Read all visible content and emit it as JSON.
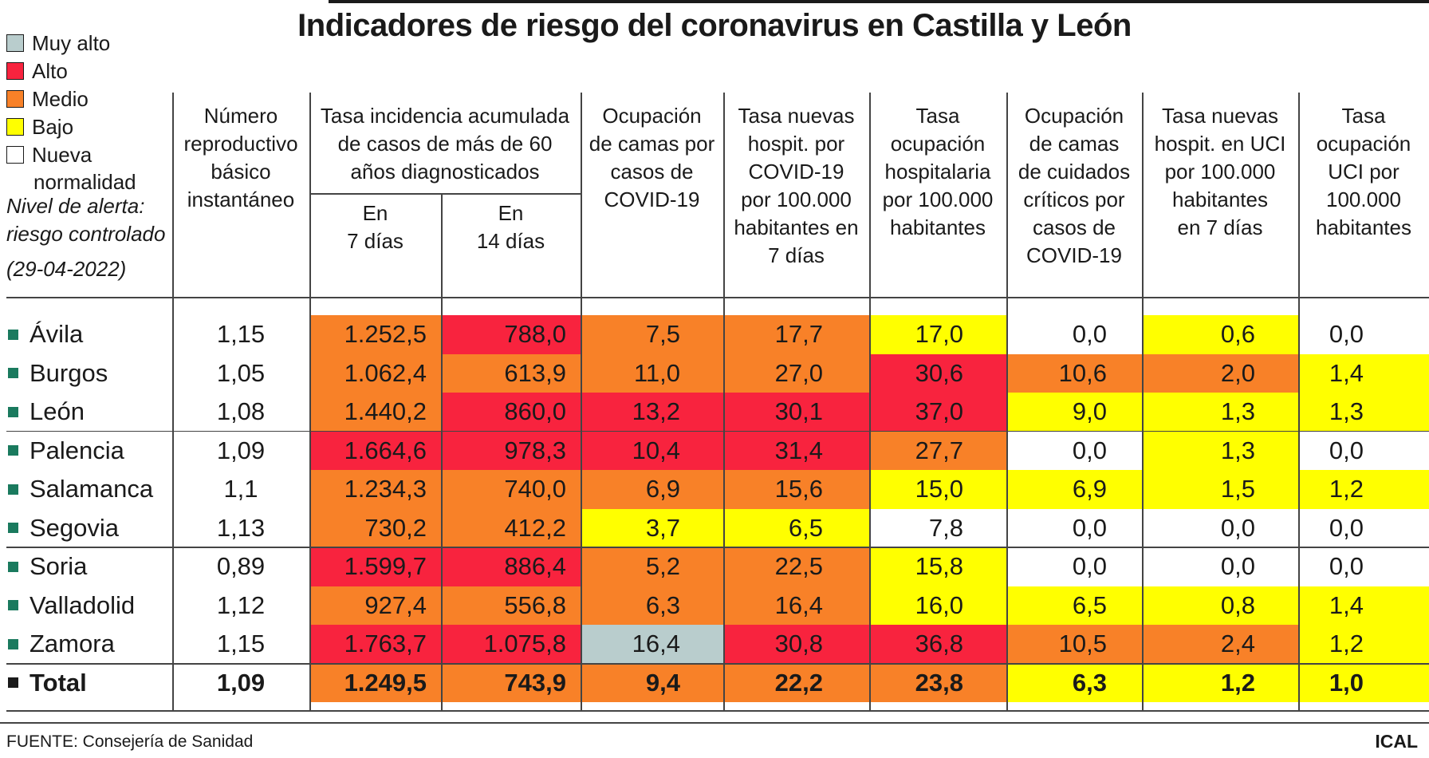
{
  "title": "Indicadores de riesgo del coronavirus en Castilla y León",
  "legend": {
    "items": [
      {
        "label": "Muy alto",
        "color": "#b9cdcd"
      },
      {
        "label": "Alto",
        "color": "#f8233e"
      },
      {
        "label": "Medio",
        "color": "#f88128"
      },
      {
        "label": "Bajo",
        "color": "#ffff00"
      },
      {
        "label": "Nueva",
        "color": "#ffffff"
      }
    ],
    "nueva_cont": "normalidad",
    "alert_line1": "Nivel de alerta:",
    "alert_line2": "riesgo controlado",
    "date": "(29-04-2022)"
  },
  "headers": {
    "rep": [
      "Número",
      "reproductivo",
      "básico",
      "instantáneo"
    ],
    "tasa_group": [
      "Tasa incidencia acumulada",
      "de casos de más de 60",
      "años diagnosticados"
    ],
    "tasa7": [
      "En",
      "7 días"
    ],
    "tasa14": [
      "En",
      "14 días"
    ],
    "ocup_camas": [
      "Ocupación",
      "de camas por",
      "casos de",
      "COVID-19"
    ],
    "hosp_nuevas": [
      "Tasa nuevas",
      "hospit. por",
      "COVID-19",
      "por 100.000",
      "habitantes en",
      "7 días"
    ],
    "tasa_hosp": [
      "Tasa",
      "ocupación",
      "hospitalaria",
      "por 100.000",
      "habitantes"
    ],
    "ocup_uci": [
      "Ocupación",
      "de camas",
      "de cuidados",
      "críticos por",
      "casos de",
      "COVID-19"
    ],
    "uci_nuevas": [
      "Tasa nuevas",
      "hospit. en UCI",
      "por 100.000",
      "habitantes",
      "en 7 días"
    ],
    "tasa_uci": [
      "Tasa",
      "ocupación",
      "UCI por",
      "100.000",
      "habitantes"
    ]
  },
  "colors": {
    "muy_alto": "#b9cdcd",
    "alto": "#f8233e",
    "medio": "#f88128",
    "bajo": "#ffff00",
    "nueva": "#ffffff"
  },
  "chart_data": {
    "type": "table",
    "title": "Indicadores de riesgo del coronavirus en Castilla y León",
    "date": "(29-04-2022)",
    "columns": [
      "Número reproductivo básico instantáneo",
      "Tasa incidencia acumulada de casos de más de 60 años diagnosticados - En 7 días",
      "Tasa incidencia acumulada de casos de más de 60 años diagnosticados - En 14 días",
      "Ocupación de camas por casos de COVID-19",
      "Tasa nuevas hospit. por COVID-19 por 100.000 habitantes en 7 días",
      "Tasa ocupación hospitalaria por 100.000 habitantes",
      "Ocupación de camas de cuidados críticos por casos de COVID-19",
      "Tasa nuevas hospit. en UCI por 100.000 habitantes en 7 días",
      "Tasa ocupación UCI por 100.000 habitantes"
    ],
    "rows": [
      {
        "name": "Ávila",
        "values": [
          "1,15",
          "1.252,5",
          "788,0",
          "7,5",
          "17,7",
          "17,0",
          "0,0",
          "0,6",
          "0,0"
        ],
        "levels": [
          "none",
          "medio",
          "alto",
          "medio",
          "medio",
          "bajo",
          "nueva",
          "bajo",
          "nueva"
        ]
      },
      {
        "name": "Burgos",
        "values": [
          "1,05",
          "1.062,4",
          "613,9",
          "11,0",
          "27,0",
          "30,6",
          "10,6",
          "2,0",
          "1,4"
        ],
        "levels": [
          "none",
          "medio",
          "medio",
          "medio",
          "medio",
          "alto",
          "medio",
          "medio",
          "bajo"
        ]
      },
      {
        "name": "León",
        "values": [
          "1,08",
          "1.440,2",
          "860,0",
          "13,2",
          "30,1",
          "37,0",
          "9,0",
          "1,3",
          "1,3"
        ],
        "levels": [
          "none",
          "medio",
          "alto",
          "alto",
          "alto",
          "alto",
          "bajo",
          "bajo",
          "bajo"
        ]
      },
      {
        "name": "Palencia",
        "values": [
          "1,09",
          "1.664,6",
          "978,3",
          "10,4",
          "31,4",
          "27,7",
          "0,0",
          "1,3",
          "0,0"
        ],
        "levels": [
          "none",
          "alto",
          "alto",
          "alto",
          "alto",
          "medio",
          "nueva",
          "bajo",
          "nueva"
        ]
      },
      {
        "name": "Salamanca",
        "values": [
          "1,1",
          "1.234,3",
          "740,0",
          "6,9",
          "15,6",
          "15,0",
          "6,9",
          "1,5",
          "1,2"
        ],
        "levels": [
          "none",
          "medio",
          "medio",
          "medio",
          "medio",
          "bajo",
          "bajo",
          "bajo",
          "bajo"
        ]
      },
      {
        "name": "Segovia",
        "values": [
          "1,13",
          "730,2",
          "412,2",
          "3,7",
          "6,5",
          "7,8",
          "0,0",
          "0,0",
          "0,0"
        ],
        "levels": [
          "none",
          "medio",
          "medio",
          "bajo",
          "bajo",
          "nueva",
          "nueva",
          "nueva",
          "nueva"
        ]
      },
      {
        "name": "Soria",
        "values": [
          "0,89",
          "1.599,7",
          "886,4",
          "5,2",
          "22,5",
          "15,8",
          "0,0",
          "0,0",
          "0,0"
        ],
        "levels": [
          "none",
          "alto",
          "alto",
          "medio",
          "medio",
          "bajo",
          "nueva",
          "nueva",
          "nueva"
        ]
      },
      {
        "name": "Valladolid",
        "values": [
          "1,12",
          "927,4",
          "556,8",
          "6,3",
          "16,4",
          "16,0",
          "6,5",
          "0,8",
          "1,4"
        ],
        "levels": [
          "none",
          "medio",
          "medio",
          "medio",
          "medio",
          "bajo",
          "bajo",
          "bajo",
          "bajo"
        ]
      },
      {
        "name": "Zamora",
        "values": [
          "1,15",
          "1.763,7",
          "1.075,8",
          "16,4",
          "30,8",
          "36,8",
          "10,5",
          "2,4",
          "1,2"
        ],
        "levels": [
          "none",
          "alto",
          "alto",
          "muy_alto",
          "alto",
          "alto",
          "medio",
          "medio",
          "bajo"
        ]
      },
      {
        "name": "Total",
        "values": [
          "1,09",
          "1.249,5",
          "743,9",
          "9,4",
          "22,2",
          "23,8",
          "6,3",
          "1,2",
          "1,0"
        ],
        "levels": [
          "none",
          "medio",
          "medio",
          "medio",
          "medio",
          "medio",
          "bajo",
          "bajo",
          "bajo"
        ]
      }
    ]
  },
  "footer": {
    "source": "FUENTE: Consejería de Sanidad",
    "brand": "ICAL"
  }
}
